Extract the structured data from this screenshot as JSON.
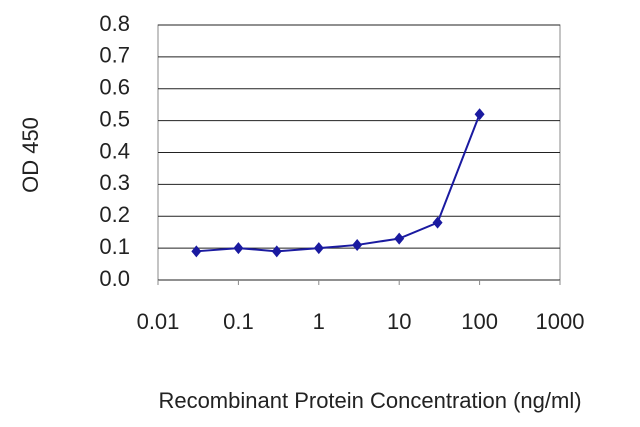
{
  "chart_data": {
    "type": "line",
    "x_label": "Recombinant Protein Concentration (ng/ml)",
    "y_label": "OD 450",
    "x": [
      0.03,
      0.1,
      0.3,
      1,
      3,
      10,
      30,
      100
    ],
    "values": [
      0.09,
      0.1,
      0.09,
      0.1,
      0.11,
      0.13,
      0.18,
      0.52
    ],
    "color": "#1a1aa0",
    "x_log": true,
    "xlim": [
      0.01,
      1000
    ],
    "xticks": [
      0.01,
      0.1,
      1,
      10,
      100,
      1000
    ],
    "ylim": [
      0,
      0.8
    ],
    "yticks": [
      {
        "value": 0,
        "label": "0.0"
      },
      0.1,
      0.2,
      0.3,
      0.4,
      0.5,
      0.6,
      0.7,
      0.8
    ],
    "grid": true
  }
}
